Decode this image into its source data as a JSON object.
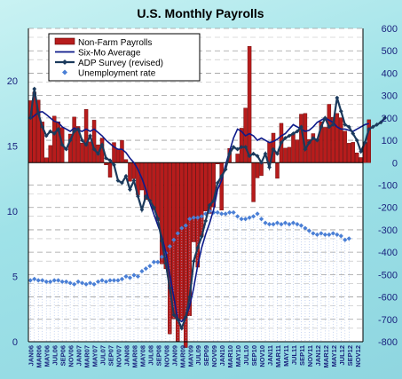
{
  "chart_data": {
    "type": "bar",
    "title": "U.S. Monthly Payrolls",
    "y_left": {
      "lim": [
        0,
        24
      ],
      "ticks": [
        0,
        5,
        10,
        15,
        20
      ]
    },
    "y_right": {
      "lim": [
        -800,
        600
      ],
      "ticks": [
        -800,
        -700,
        -600,
        -500,
        -400,
        -300,
        -200,
        -100,
        0,
        100,
        200,
        300,
        400,
        500,
        600
      ]
    },
    "x_tick_labels": [
      "JAN06",
      "MAR06",
      "MAY06",
      "JUL06",
      "SEP06",
      "NOV06",
      "JAN07",
      "MAR07",
      "MAY07",
      "JUL07",
      "SEP07",
      "NOV07",
      "JAN08",
      "MAR08",
      "MAY08",
      "JUL08",
      "SEP08",
      "NOV08",
      "JAN09",
      "MAR09",
      "MAY09",
      "JUL09",
      "SEP09",
      "NOV09",
      "JAN10",
      "MAR10",
      "MAY10",
      "JUL10",
      "SEP10",
      "NOV10",
      "JAN11",
      "MAR11",
      "MAY11",
      "JUL11",
      "SEP11",
      "NOV11",
      "JAN12",
      "MAR12",
      "MAY12",
      "JUL12",
      "SEP12",
      "NOV12"
    ],
    "legend": [
      {
        "name": "Non-Farm Payrolls",
        "symbol": "bar",
        "color": "#b71c1c"
      },
      {
        "name": "Six-Mo Average",
        "symbol": "line",
        "color": "#0d1a8a"
      },
      {
        "name": "ADP Survey (revised)",
        "symbol": "line-marker",
        "color": "#1b3a5c"
      },
      {
        "name": "Unemployment rate",
        "symbol": "marker",
        "color": "#4a7fd6"
      }
    ],
    "series": [
      {
        "name": "Non-Farm Payrolls",
        "axis": "right",
        "color": "#b71c1c",
        "values": [
          277,
          315,
          280,
          182,
          22,
          77,
          208,
          183,
          157,
          2,
          128,
          204,
          162,
          88,
          238,
          93,
          190,
          80,
          110,
          -10,
          -65,
          90,
          60,
          100,
          14,
          -83,
          -72,
          -144,
          -122,
          -165,
          -172,
          -210,
          -259,
          -452,
          -474,
          -765,
          -697,
          -798,
          -701,
          -826,
          -684,
          -354,
          -467,
          -327,
          -216,
          -227,
          -198,
          -6,
          -212,
          -1,
          64,
          -1,
          39,
          154,
          244,
          520,
          -175,
          -68,
          -58,
          -2,
          93,
          132,
          -70,
          176,
          65,
          69,
          130,
          102,
          217,
          220,
          104,
          130,
          107,
          183,
          158,
          261,
          203,
          220,
          201,
          141,
          87,
          91,
          44,
          23,
          90,
          192
        ],
        "start": "JAN06"
      },
      {
        "name": "Six-Mo Average",
        "axis": "right",
        "color": "#0d1a8a",
        "values": [
          195,
          210,
          225,
          228,
          215,
          200,
          185,
          180,
          160,
          150,
          140,
          155,
          145,
          140,
          150,
          140,
          150,
          135,
          120,
          100,
          85,
          70,
          60,
          60,
          45,
          20,
          0,
          -30,
          -70,
          -120,
          -180,
          -230,
          -280,
          -330,
          -400,
          -500,
          -600,
          -700,
          -710,
          -690,
          -640,
          -560,
          -460,
          -380,
          -320,
          -270,
          -210,
          -120,
          -80,
          -10,
          50,
          110,
          150,
          140,
          120,
          130,
          120,
          100,
          110,
          100,
          90,
          95,
          105,
          120,
          130,
          150,
          170,
          160,
          150,
          140,
          145,
          160,
          180,
          190,
          200,
          190,
          180,
          160,
          150,
          150,
          145,
          140,
          150,
          160,
          170,
          175
        ],
        "start": "JAN06"
      },
      {
        "name": "ADP Survey (revised)",
        "axis": "right",
        "color": "#1b3a5c",
        "values": [
          200,
          330,
          220,
          160,
          120,
          140,
          130,
          150,
          80,
          60,
          100,
          140,
          150,
          100,
          80,
          120,
          60,
          40,
          80,
          20,
          10,
          -10,
          -80,
          -90,
          -60,
          -120,
          -80,
          -150,
          -210,
          -150,
          -170,
          -200,
          -250,
          -350,
          -450,
          -560,
          -680,
          -700,
          -740,
          -690,
          -600,
          -440,
          -380,
          -330,
          -260,
          -190,
          -170,
          -90,
          -60,
          -30,
          40,
          70,
          60,
          70,
          70,
          30,
          40,
          30,
          0,
          40,
          -20,
          60,
          40,
          90,
          110,
          120,
          130,
          140,
          160,
          60,
          90,
          110,
          100,
          160,
          200,
          160,
          170,
          290,
          230,
          170,
          160,
          130,
          100,
          50,
          90,
          150,
          160,
          170,
          180,
          200
        ],
        "start": "JAN06"
      },
      {
        "name": "Unemployment rate",
        "axis": "left",
        "color": "#4a7fd6",
        "values": [
          4.7,
          4.8,
          4.7,
          4.7,
          4.6,
          4.6,
          4.7,
          4.7,
          4.6,
          4.6,
          4.5,
          4.4,
          4.6,
          4.5,
          4.4,
          4.5,
          4.4,
          4.6,
          4.7,
          4.6,
          4.7,
          4.7,
          4.7,
          4.8,
          5.0,
          4.9,
          5.1,
          5.0,
          5.4,
          5.6,
          5.8,
          6.1,
          6.1,
          6.5,
          6.8,
          7.3,
          7.8,
          8.3,
          8.7,
          8.9,
          9.4,
          9.5,
          9.5,
          9.6,
          9.8,
          10.0,
          9.9,
          9.9,
          9.8,
          9.8,
          9.9,
          9.9,
          9.6,
          9.4,
          9.4,
          9.5,
          9.6,
          9.8,
          9.4,
          9.1,
          9.0,
          9.0,
          9.1,
          9.0,
          9.1,
          9.0,
          9.1,
          9.0,
          8.9,
          8.7,
          8.5,
          8.3,
          8.2,
          8.3,
          8.2,
          8.2,
          8.3,
          8.2,
          8.1,
          7.8,
          7.9
        ],
        "start": "JAN06"
      }
    ]
  }
}
